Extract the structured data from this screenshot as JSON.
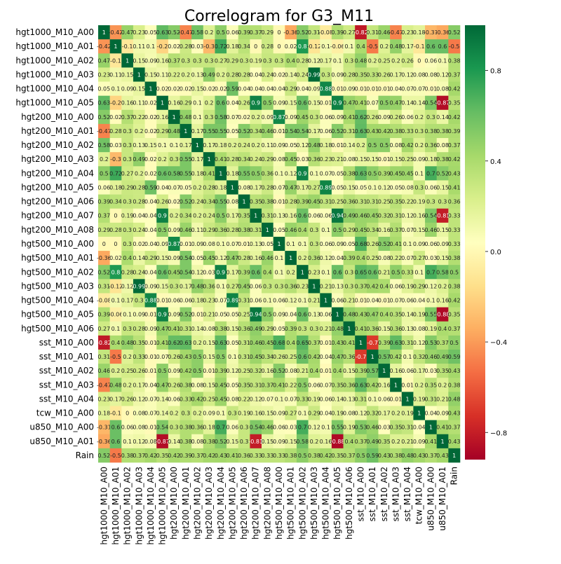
{
  "chart_data": {
    "type": "heatmap",
    "title": "Correlogram for G3_M11",
    "colormap": "RdYlGn",
    "vmin": -0.92,
    "vmax": 1.0,
    "colorbar_ticks": [
      -0.8,
      -0.4,
      0.0,
      0.4,
      0.8
    ],
    "colorbar_tick_labels": [
      "−0.8",
      "−0.4",
      "0.0",
      "0.4",
      "0.8"
    ],
    "annotations": "cell values, 2 decimals",
    "labels": [
      "hgt1000_M10_A00",
      "hgt1000_M10_A01",
      "hgt1000_M10_A02",
      "hgt1000_M10_A03",
      "hgt1000_M10_A04",
      "hgt1000_M10_A05",
      "hgt200_M10_A00",
      "hgt200_M10_A01",
      "hgt200_M10_A02",
      "hgt200_M10_A03",
      "hgt200_M10_A04",
      "hgt200_M10_A05",
      "hgt200_M10_A06",
      "hgt200_M10_A07",
      "hgt200_M10_A08",
      "hgt500_M10_A00",
      "hgt500_M10_A01",
      "hgt500_M10_A02",
      "hgt500_M10_A03",
      "hgt500_M10_A04",
      "hgt500_M10_A05",
      "hgt500_M10_A06",
      "sst_M10_A00",
      "sst_M10_A01",
      "sst_M10_A02",
      "sst_M10_A03",
      "sst_M10_A04",
      "tcw_M10_A00",
      "u850_M10_A00",
      "u850_M10_A01",
      "Rain"
    ],
    "matrix": [
      [
        1,
        -0.42,
        0.47,
        0.23,
        0.05,
        0.63,
        0.52,
        -0.47,
        0.58,
        0.2,
        0.5,
        0.06,
        0.39,
        0.37,
        0.29,
        -0.0,
        -0.36,
        0.52,
        0.31,
        -0.08,
        0.39,
        0.27,
        -0.82,
        0.31,
        0.46,
        -0.47,
        0.23,
        0.18,
        -0.31,
        -0.36,
        0.52
      ],
      [
        -0.42,
        1,
        -0.1,
        0.11,
        0.1,
        -0.2,
        0.02,
        0.28,
        0.03,
        -0.3,
        0.72,
        0.18,
        0.34,
        -0.0,
        0.28,
        -0.0,
        0.02,
        0.8,
        -0.12,
        0.1,
        -0.06,
        0.1,
        0.4,
        -0.5,
        0.2,
        0.48,
        0.17,
        -0.1,
        0.6,
        0.6,
        -0.5
      ],
      [
        0.47,
        -0.1,
        1,
        0.15,
        0.09,
        0.16,
        0.37,
        0.3,
        0.3,
        0.3,
        0.27,
        0.29,
        0.3,
        0.19,
        0.3,
        0.3,
        0.4,
        0.28,
        0.12,
        0.17,
        0.1,
        0.3,
        0.48,
        0.2,
        0.25,
        0.2,
        0.26,
        0.0,
        0.06,
        0.1,
        0.38
      ],
      [
        0.23,
        0.11,
        0.15,
        1,
        0.15,
        0.11,
        0.22,
        0.2,
        0.13,
        0.49,
        0.2,
        0.28,
        0.28,
        0.04,
        0.24,
        0.02,
        0.14,
        0.24,
        0.99,
        0.3,
        0.09,
        0.28,
        0.35,
        0.33,
        0.26,
        0.17,
        0.12,
        0.08,
        0.08,
        0.12,
        0.37
      ],
      [
        0.05,
        0.1,
        0.09,
        0.15,
        1,
        0.02,
        0.02,
        0.02,
        0.15,
        0.02,
        0.02,
        0.59,
        0.04,
        0.04,
        0.04,
        0.04,
        0.29,
        0.04,
        0.09,
        0.88,
        0.01,
        0.09,
        0.01,
        0.01,
        0.01,
        0.04,
        0.07,
        0.07,
        0.01,
        0.08,
        0.42
      ],
      [
        0.63,
        -0.2,
        0.16,
        0.11,
        0.02,
        1,
        0.16,
        0.29,
        0.1,
        0.2,
        0.6,
        0.04,
        0.26,
        0.9,
        0.5,
        0.09,
        0.15,
        0.6,
        0.15,
        0.01,
        0.9,
        0.47,
        0.41,
        0.07,
        0.5,
        0.47,
        0.14,
        0.14,
        0.54,
        -0.87,
        0.35
      ],
      [
        0.52,
        0.02,
        0.37,
        0.22,
        0.02,
        0.16,
        1,
        0.48,
        0.1,
        0.3,
        0.58,
        0.07,
        0.02,
        0.2,
        0.09,
        0.87,
        0.09,
        0.45,
        0.3,
        0.06,
        0.09,
        0.41,
        0.62,
        0.26,
        0.09,
        0.26,
        0.06,
        0.2,
        0.3,
        0.14,
        0.42
      ],
      [
        -0.47,
        0.28,
        0.3,
        0.2,
        0.02,
        0.29,
        0.48,
        1,
        0.17,
        0.55,
        0.55,
        0.05,
        0.52,
        0.34,
        0.46,
        0.01,
        0.54,
        0.54,
        0.17,
        0.06,
        0.52,
        0.31,
        0.63,
        0.43,
        0.42,
        0.38,
        0.33,
        0.3,
        0.38,
        0.38,
        0.39
      ],
      [
        0.58,
        0.03,
        0.3,
        0.13,
        0.15,
        0.1,
        0.1,
        0.17,
        1,
        0.17,
        0.18,
        0.2,
        0.24,
        0.2,
        0.11,
        0.09,
        0.05,
        0.12,
        0.48,
        0.18,
        0.01,
        0.14,
        0.2,
        0.5,
        0.5,
        0.08,
        0.42,
        0.2,
        0.36,
        0.08,
        0.37
      ],
      [
        0.2,
        -0.3,
        0.3,
        0.49,
        0.02,
        0.2,
        0.3,
        0.55,
        0.17,
        1,
        0.41,
        0.28,
        0.34,
        0.24,
        0.29,
        0.08,
        0.45,
        0.03,
        0.36,
        0.23,
        0.21,
        0.08,
        0.15,
        0.15,
        0.01,
        0.15,
        0.25,
        0.09,
        0.18,
        0.38,
        0.42
      ],
      [
        0.5,
        0.72,
        0.27,
        0.2,
        0.02,
        0.6,
        0.58,
        0.55,
        0.18,
        0.41,
        1,
        0.18,
        0.55,
        0.5,
        0.36,
        0.1,
        0.12,
        0.9,
        0.1,
        0.07,
        0.05,
        0.38,
        0.63,
        0.5,
        0.39,
        0.45,
        0.45,
        0.1,
        0.7,
        0.52,
        0.43
      ],
      [
        0.06,
        0.18,
        0.29,
        0.28,
        0.59,
        0.04,
        0.07,
        0.05,
        0.2,
        0.28,
        0.18,
        1,
        0.08,
        0.17,
        0.28,
        0.07,
        0.47,
        0.17,
        0.27,
        0.89,
        0.05,
        0.15,
        0.05,
        0.1,
        0.12,
        0.05,
        0.08,
        0.3,
        0.06,
        0.15,
        0.41
      ],
      [
        0.39,
        0.34,
        0.3,
        0.28,
        0.04,
        0.26,
        0.02,
        0.52,
        0.24,
        0.34,
        0.55,
        0.08,
        1,
        0.35,
        0.38,
        0.01,
        0.28,
        0.39,
        0.45,
        0.31,
        0.25,
        0.36,
        0.31,
        0.31,
        0.25,
        0.35,
        0.22,
        0.19,
        0.3,
        0.3,
        0.36
      ],
      [
        0.37,
        -0.0,
        0.19,
        0.04,
        0.04,
        0.9,
        0.2,
        0.34,
        0.2,
        0.24,
        0.5,
        0.17,
        0.35,
        1,
        0.31,
        0.13,
        0.16,
        0.6,
        0.06,
        0.06,
        0.94,
        0.49,
        0.46,
        0.45,
        0.32,
        0.31,
        0.12,
        0.16,
        0.54,
        -0.81,
        0.33
      ],
      [
        0.29,
        0.28,
        0.3,
        0.24,
        0.04,
        0.5,
        0.09,
        0.46,
        0.11,
        0.29,
        0.36,
        0.28,
        0.38,
        0.31,
        1,
        0.05,
        0.46,
        0.4,
        0.3,
        0.1,
        0.5,
        0.29,
        0.45,
        0.34,
        0.16,
        0.37,
        0.07,
        0.15,
        0.46,
        0.15,
        0.33
      ],
      [
        -0.0,
        -0.0,
        0.3,
        0.02,
        0.04,
        0.09,
        0.87,
        0.01,
        0.09,
        0.08,
        0.1,
        0.07,
        0.01,
        0.13,
        0.05,
        1,
        0.1,
        0.1,
        0.3,
        0.06,
        0.09,
        0.05,
        0.68,
        0.26,
        0.52,
        0.41,
        0.1,
        0.09,
        0.06,
        0.09,
        0.33
      ],
      [
        -0.36,
        0.02,
        0.4,
        0.14,
        0.29,
        0.15,
        0.09,
        0.54,
        0.05,
        0.45,
        0.12,
        0.47,
        0.28,
        0.16,
        0.46,
        0.1,
        1,
        0.2,
        0.36,
        0.12,
        0.04,
        0.39,
        0.4,
        0.25,
        0.08,
        0.22,
        0.07,
        0.27,
        0.03,
        0.15,
        0.38
      ],
      [
        0.52,
        0.8,
        0.28,
        0.24,
        0.04,
        0.6,
        0.45,
        0.54,
        0.12,
        0.03,
        0.9,
        0.17,
        0.39,
        0.6,
        0.4,
        0.1,
        0.2,
        1,
        0.23,
        0.1,
        0.6,
        0.3,
        0.65,
        0.6,
        0.21,
        0.5,
        0.33,
        0.1,
        0.7,
        0.58,
        0.5
      ],
      [
        0.31,
        -0.12,
        0.12,
        0.99,
        0.09,
        0.15,
        0.3,
        0.17,
        0.48,
        0.36,
        0.1,
        0.27,
        0.45,
        0.06,
        0.3,
        0.3,
        0.36,
        0.23,
        1,
        0.21,
        0.13,
        0.3,
        0.37,
        0.42,
        0.4,
        0.06,
        0.19,
        0.29,
        0.12,
        0.2,
        0.38
      ],
      [
        -0.08,
        0.1,
        0.17,
        0.3,
        0.88,
        0.01,
        0.06,
        0.06,
        0.18,
        0.23,
        0.07,
        0.89,
        0.31,
        0.06,
        0.1,
        0.06,
        0.12,
        0.1,
        0.21,
        1,
        0.06,
        0.21,
        0.01,
        0.04,
        0.01,
        0.07,
        0.06,
        0.04,
        0.1,
        0.16,
        0.42
      ],
      [
        0.39,
        -0.06,
        0.1,
        0.09,
        0.01,
        0.9,
        0.09,
        0.52,
        0.01,
        0.21,
        0.05,
        0.05,
        0.25,
        0.94,
        0.5,
        0.09,
        0.04,
        0.6,
        0.13,
        0.06,
        1,
        0.48,
        0.43,
        0.47,
        0.4,
        0.35,
        0.14,
        0.19,
        0.55,
        -0.88,
        0.35
      ],
      [
        0.27,
        0.1,
        0.3,
        0.28,
        0.09,
        0.47,
        0.41,
        0.31,
        0.14,
        0.08,
        0.38,
        0.15,
        0.36,
        0.49,
        0.29,
        0.05,
        0.39,
        0.3,
        0.3,
        0.21,
        0.48,
        1,
        0.41,
        0.36,
        0.15,
        0.36,
        0.13,
        0.08,
        0.19,
        0.4,
        0.37
      ],
      [
        -0.82,
        0.4,
        0.48,
        0.35,
        0.01,
        0.41,
        0.62,
        0.63,
        0.2,
        0.15,
        0.63,
        0.05,
        0.31,
        0.46,
        0.45,
        0.68,
        0.4,
        0.65,
        0.37,
        0.01,
        0.43,
        0.41,
        1,
        -0.7,
        0.39,
        0.63,
        0.31,
        0.12,
        0.53,
        0.37,
        0.5
      ],
      [
        0.31,
        -0.5,
        0.2,
        0.33,
        0.01,
        0.07,
        0.26,
        0.43,
        0.5,
        0.15,
        0.5,
        0.1,
        0.31,
        0.45,
        0.34,
        0.26,
        0.25,
        0.6,
        0.42,
        0.04,
        0.47,
        0.36,
        -0.7,
        1,
        0.57,
        0.42,
        0.1,
        0.32,
        0.46,
        0.49,
        0.59
      ],
      [
        0.46,
        0.2,
        0.25,
        0.26,
        0.01,
        0.5,
        0.09,
        0.42,
        0.5,
        0.01,
        0.39,
        0.12,
        0.25,
        0.32,
        0.16,
        0.52,
        0.08,
        0.21,
        0.4,
        0.01,
        0.4,
        0.15,
        0.39,
        0.57,
        1,
        0.16,
        0.06,
        0.17,
        0.03,
        0.35,
        0.43
      ],
      [
        -0.47,
        0.48,
        0.2,
        0.17,
        0.04,
        0.47,
        0.26,
        0.38,
        0.08,
        0.15,
        0.45,
        0.05,
        0.35,
        0.31,
        0.37,
        0.41,
        0.22,
        0.5,
        0.06,
        0.07,
        0.35,
        0.36,
        0.63,
        0.42,
        0.16,
        1,
        0.01,
        0.2,
        0.35,
        0.2,
        0.38
      ],
      [
        0.23,
        0.17,
        0.26,
        0.12,
        0.07,
        0.14,
        0.06,
        0.33,
        0.42,
        0.25,
        0.45,
        0.08,
        0.22,
        0.12,
        0.07,
        0.1,
        0.07,
        0.33,
        0.19,
        0.06,
        0.14,
        0.13,
        0.31,
        0.1,
        0.06,
        0.01,
        1,
        0.19,
        0.31,
        0.21,
        0.48
      ],
      [
        0.18,
        -0.1,
        0.0,
        0.08,
        0.07,
        0.14,
        0.2,
        0.3,
        0.2,
        0.09,
        0.1,
        0.3,
        0.19,
        0.16,
        0.15,
        0.09,
        0.27,
        0.1,
        0.29,
        0.04,
        0.19,
        0.08,
        0.12,
        0.32,
        0.17,
        0.2,
        0.19,
        1,
        0.04,
        0.09,
        0.43
      ],
      [
        -0.31,
        0.6,
        0.06,
        0.08,
        0.01,
        0.54,
        0.3,
        0.38,
        0.36,
        0.18,
        0.7,
        0.06,
        0.3,
        0.54,
        0.46,
        0.06,
        0.03,
        0.7,
        0.12,
        0.1,
        0.55,
        0.19,
        0.53,
        0.46,
        0.03,
        0.35,
        0.31,
        0.04,
        1,
        0.41,
        0.37
      ],
      [
        -0.36,
        0.6,
        0.1,
        0.12,
        0.08,
        -0.87,
        0.14,
        0.38,
        0.08,
        0.38,
        0.52,
        0.15,
        0.3,
        -0.81,
        0.15,
        0.09,
        0.15,
        0.58,
        0.2,
        0.16,
        -0.88,
        0.4,
        0.37,
        0.49,
        0.35,
        0.2,
        0.21,
        0.09,
        0.41,
        1,
        0.43
      ],
      [
        0.52,
        -0.5,
        0.38,
        0.37,
        0.42,
        0.35,
        0.42,
        0.39,
        0.37,
        0.42,
        0.43,
        0.41,
        0.36,
        0.33,
        0.33,
        0.33,
        0.38,
        0.5,
        0.38,
        0.42,
        0.35,
        0.37,
        0.5,
        0.59,
        0.43,
        0.38,
        0.48,
        0.43,
        0.37,
        0.43,
        1
      ]
    ]
  }
}
